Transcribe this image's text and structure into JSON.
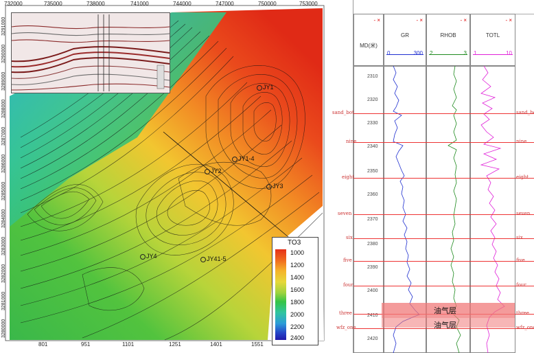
{
  "map": {
    "x_ticks_top": [
      "732000",
      "735000",
      "738000",
      "741000",
      "744000",
      "747000",
      "750000",
      "753000"
    ],
    "y_ticks_left": [
      "3291000",
      "3290000",
      "3289000",
      "3288000",
      "3287000",
      "3286000",
      "3285000",
      "3284000",
      "3283000",
      "3282000",
      "3281000",
      "3280000"
    ],
    "x_ticks_bottom": [
      "801",
      "951",
      "1101",
      "1251",
      "1401",
      "1551"
    ],
    "wells": [
      {
        "name": "JY1"
      },
      {
        "name": "JY1-4"
      },
      {
        "name": "JY2"
      },
      {
        "name": "JY3"
      },
      {
        "name": "JY4"
      },
      {
        "name": "JY41-5"
      }
    ],
    "colorbar": {
      "title": "TO3",
      "ticks": [
        "1000",
        "1200",
        "1400",
        "1600",
        "1800",
        "2000",
        "2200",
        "2400"
      ]
    }
  },
  "log": {
    "depth_header": "MD(米)",
    "tracks": [
      {
        "name": "GR",
        "min": "0",
        "max": "300",
        "color": "#1f2fd0"
      },
      {
        "name": "RHOB",
        "min": "2",
        "max": "3",
        "color": "#1e8a1e"
      },
      {
        "name": "TOTL",
        "min": "1",
        "max": "10",
        "color": "#e020d8"
      }
    ],
    "depths": [
      "2310",
      "2320",
      "2330",
      "2340",
      "2350",
      "2360",
      "2370",
      "2380",
      "2390",
      "2400",
      "2410",
      "2420"
    ],
    "markers": [
      {
        "left": "sand_bot",
        "right": "sand_bot"
      },
      {
        "left": "nine",
        "right": "nine"
      },
      {
        "left": "eight",
        "right": "eight"
      },
      {
        "left": "seven",
        "right": "seven"
      },
      {
        "left": "six",
        "right": "six"
      },
      {
        "left": "five",
        "right": "five"
      },
      {
        "left": "four",
        "right": "four"
      },
      {
        "left": "three",
        "right": "three"
      },
      {
        "left": "wfz_one",
        "right": "wfz_one"
      }
    ],
    "zones": [
      {
        "label": "油气层"
      },
      {
        "label": "油气层"
      }
    ],
    "close_glyph": "- ×"
  }
}
